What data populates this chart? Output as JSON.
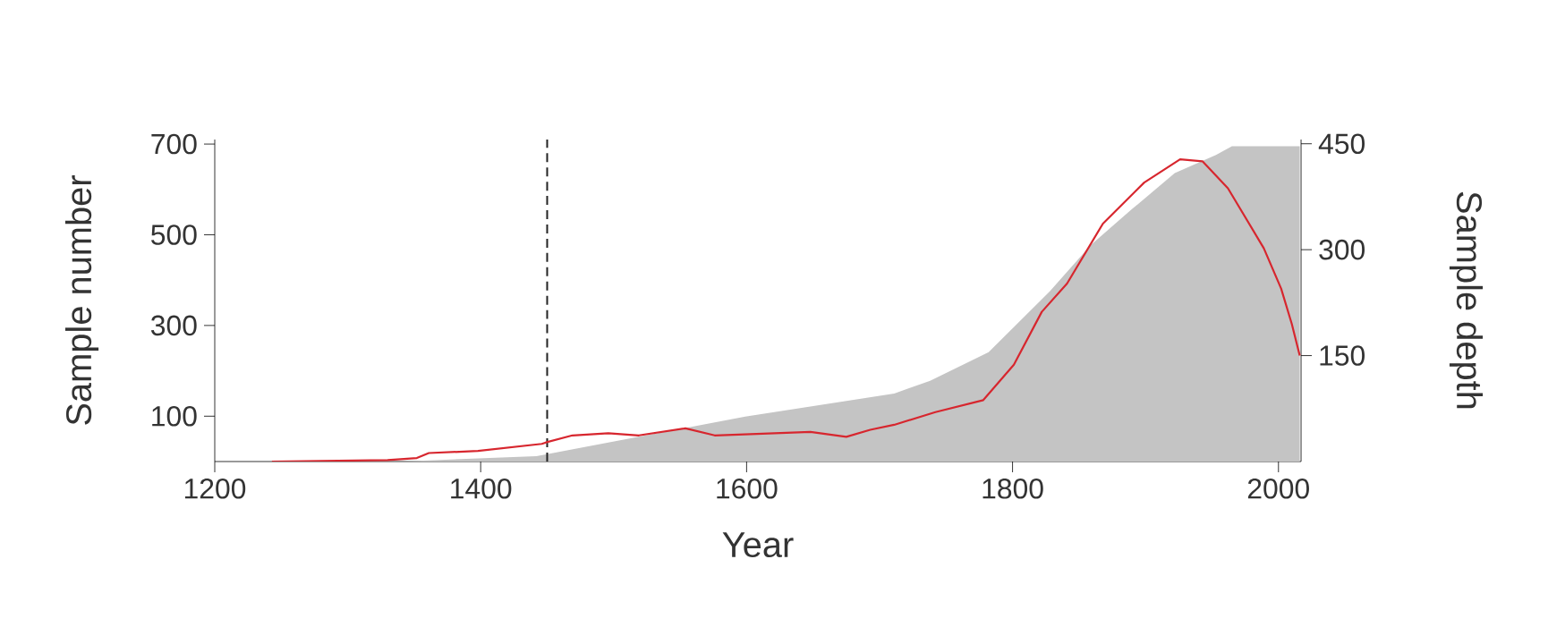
{
  "chart_data": {
    "type": "line",
    "xlabel": "Year",
    "ylabel": "Sample number",
    "y2label": "Sample depth",
    "xlim": [
      1200,
      2017
    ],
    "xticks": [
      1200,
      1400,
      1600,
      1800,
      2000
    ],
    "ylim": [
      0,
      710
    ],
    "yticks": [
      100,
      300,
      500,
      700
    ],
    "y2lim": [
      0,
      456
    ],
    "y2ticks": [
      150,
      300,
      450
    ],
    "grid": false,
    "ref_lines": [
      {
        "axis": "x",
        "value": 1450,
        "color": "#222222",
        "line_style": "dashed"
      }
    ],
    "series": [
      {
        "type": "area",
        "color": "#c4c4c4",
        "x": [
          1340,
          1442,
          1599,
          1711,
          1738,
          1782,
          1828,
          1859,
          1890,
          1922,
          1953,
          1965,
          2016
        ],
        "values": [
          0,
          12,
          99,
          150,
          178,
          241,
          375,
          478,
          557,
          636,
          676,
          695,
          695
        ]
      },
      {
        "axis": "y2",
        "color": "#d7262e",
        "x": [
          1243,
          1330,
          1352,
          1361,
          1398,
          1446,
          1449,
          1469,
          1496,
          1519,
          1554,
          1576,
          1621,
          1648,
          1675,
          1693,
          1711,
          1742,
          1778,
          1801,
          1822,
          1841,
          1868,
          1899,
          1926,
          1943,
          1962,
          1989,
          2002,
          2010,
          2016
        ],
        "values": [
          0,
          2,
          5,
          12,
          15,
          25,
          27,
          37,
          40,
          37,
          47,
          37,
          40,
          42,
          35,
          45,
          52,
          70,
          87,
          137,
          212,
          252,
          337,
          395,
          428,
          425,
          387,
          302,
          245,
          195,
          150
        ]
      }
    ]
  }
}
